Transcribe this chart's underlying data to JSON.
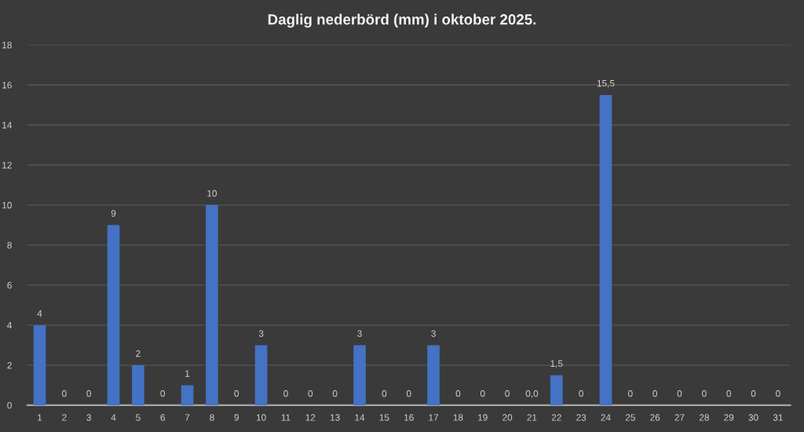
{
  "chart_data": {
    "type": "bar",
    "title": "Daglig nederbörd (mm) i oktober 2025.",
    "categories": [
      "1",
      "2",
      "3",
      "4",
      "5",
      "6",
      "7",
      "8",
      "9",
      "10",
      "11",
      "12",
      "13",
      "14",
      "15",
      "16",
      "17",
      "18",
      "19",
      "20",
      "21",
      "22",
      "23",
      "24",
      "25",
      "26",
      "27",
      "28",
      "29",
      "30",
      "31"
    ],
    "values": [
      4,
      0,
      0,
      9,
      2,
      0,
      1,
      10,
      0,
      3,
      0,
      0,
      0,
      3,
      0,
      0,
      3,
      0,
      0,
      0,
      0,
      1.5,
      0,
      15.5,
      0,
      0,
      0,
      0,
      0,
      0,
      0
    ],
    "value_labels": [
      "4",
      "0",
      "0",
      "9",
      "2",
      "0",
      "1",
      "10",
      "0",
      "3",
      "0",
      "0",
      "0",
      "3",
      "0",
      "0",
      "3",
      "0",
      "0",
      "0",
      "0,0",
      "1,5",
      "0",
      "15,5",
      "0",
      "0",
      "0",
      "0",
      "0",
      "0",
      "0"
    ],
    "color": "#4472c4",
    "ylim": [
      0,
      18
    ],
    "yticks": [
      0,
      2,
      4,
      6,
      8,
      10,
      12,
      14,
      16,
      18
    ],
    "grid": "y"
  }
}
